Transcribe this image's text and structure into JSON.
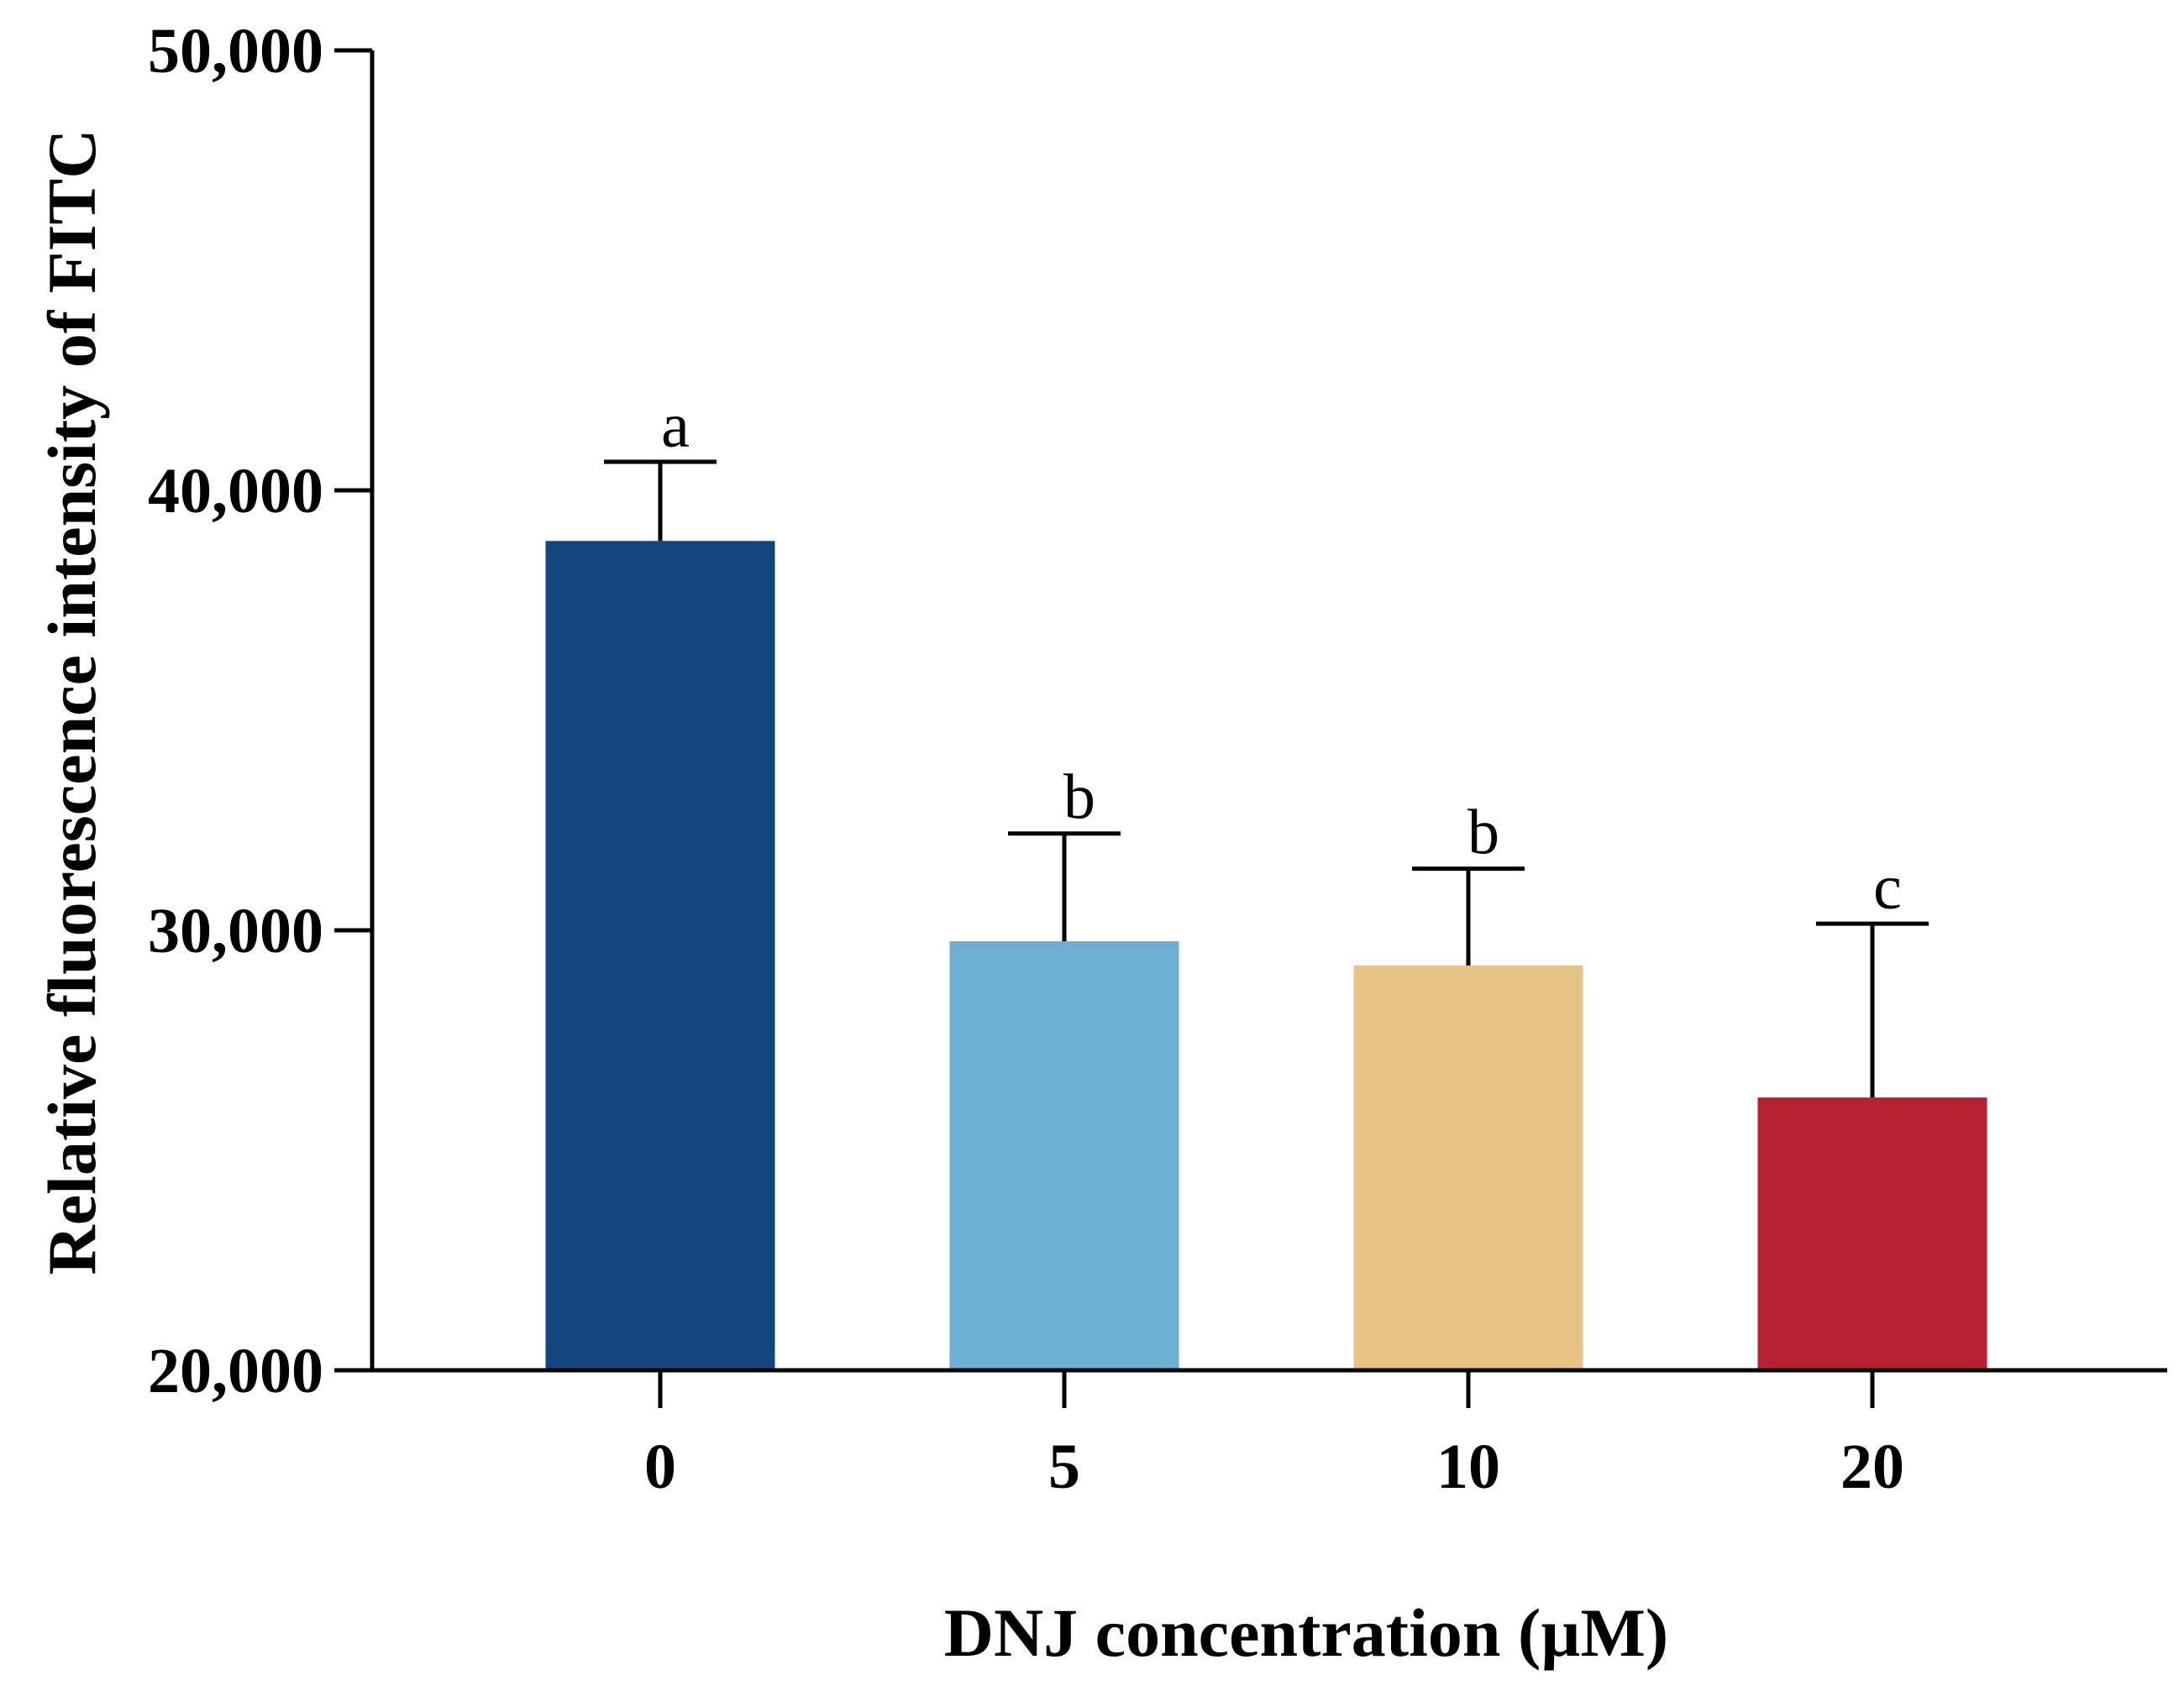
{
  "chart_data": {
    "type": "bar",
    "title": "",
    "xlabel": "DNJ concentration (µM)",
    "ylabel": "Relative fluorescence intensity of FITC",
    "categories": [
      "0",
      "5",
      "10",
      "20"
    ],
    "values": [
      38850,
      29750,
      29200,
      26200
    ],
    "error_upper": [
      40650,
      32200,
      31400,
      30150
    ],
    "significance": [
      "a",
      "b",
      "b",
      "c"
    ],
    "colors": [
      "#13467C",
      "#6DAED3",
      "#E8C386",
      "#B52331"
    ],
    "ylim": [
      20000,
      50000
    ],
    "yticks": [
      20000,
      30000,
      40000,
      50000
    ],
    "ytick_labels": [
      "20,000",
      "30,000",
      "40,000",
      "50,000"
    ],
    "grid": false,
    "legend": false
  }
}
